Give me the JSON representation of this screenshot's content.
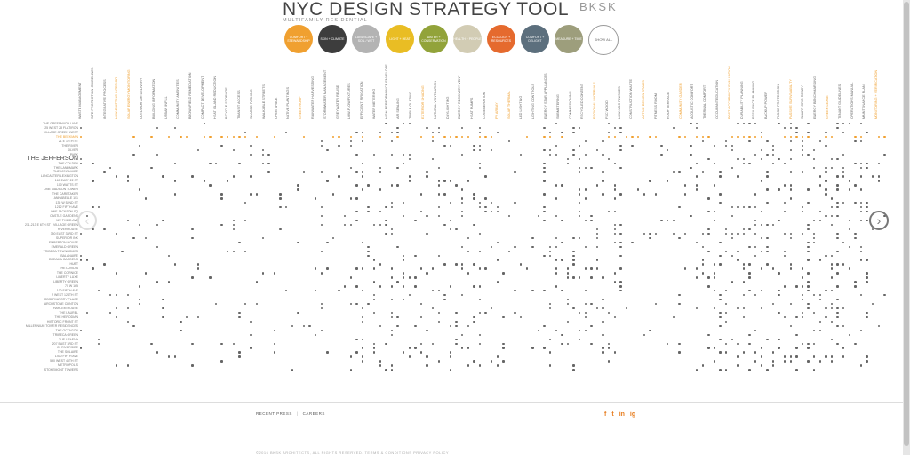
{
  "header": {
    "title": "NYC DESIGN STRATEGY TOOL",
    "subtitle": "MULTIFAMILY RESIDENTIAL",
    "logo": "BKSK"
  },
  "categories": [
    {
      "label": "COMFORT + STEWARDSHIP",
      "color": "#f0a030"
    },
    {
      "label": "SKIN + CLIMATE",
      "color": "#3d3d3d"
    },
    {
      "label": "LANDSCAPE + SOIL / WET",
      "color": "#b3b3b3"
    },
    {
      "label": "LIGHT + HEAT",
      "color": "#e9bd24"
    },
    {
      "label": "WATER + CONSERVATION",
      "color": "#92a33a"
    },
    {
      "label": "HEALTH + PEOPLE",
      "color": "#d2ccb4"
    },
    {
      "label": "ECOLOGY + RESOURCES",
      "color": "#e56a2e"
    },
    {
      "label": "COMFORT + DELIGHT",
      "color": "#5c6f7d"
    },
    {
      "label": "MEASURE + TIME",
      "color": "#9d9e7c"
    },
    {
      "label": "SHOW ALL",
      "color": "#ffffff"
    }
  ],
  "column_labels": [
    {
      "text": "WASTE MANAGEMENT",
      "hl": false
    },
    {
      "text": "SITE PROTECTION GUIDELINES",
      "hl": false
    },
    {
      "text": "INTEGRATIVE PROCESS",
      "hl": false
    },
    {
      "text": "LOW-EMITTING INTERIOR",
      "hl": true
    },
    {
      "text": "SOLAR ENERGY MONITORING",
      "hl": true
    },
    {
      "text": "OUTDOOR AIR DELIVERY",
      "hl": false
    },
    {
      "text": "BUILDING INFORMATION",
      "hl": false
    },
    {
      "text": "URBAN INFILL",
      "hl": false
    },
    {
      "text": "COMMUNITY AMENITIES",
      "hl": false
    },
    {
      "text": "BROWNFIELD REMEDIATION",
      "hl": false
    },
    {
      "text": "COMPACT DEVELOPMENT",
      "hl": false
    },
    {
      "text": "HEAT ISLAND REDUCTION",
      "hl": false
    },
    {
      "text": "BICYCLE STORAGE",
      "hl": false
    },
    {
      "text": "TRANSIT ACCESS",
      "hl": false
    },
    {
      "text": "SHARED PARKING",
      "hl": false
    },
    {
      "text": "WALKABLE STREETS",
      "hl": false
    },
    {
      "text": "OPEN SPACE",
      "hl": false
    },
    {
      "text": "NATIVE PLANTINGS",
      "hl": false
    },
    {
      "text": "GREEN ROOF",
      "hl": true
    },
    {
      "text": "RAINWATER HARVESTING",
      "hl": false
    },
    {
      "text": "STORMWATER MANAGEMENT",
      "hl": false
    },
    {
      "text": "GREYWATER REUSE",
      "hl": false
    },
    {
      "text": "LOW-FLOW FIXTURES",
      "hl": false
    },
    {
      "text": "EFFICIENT IRRIGATION",
      "hl": false
    },
    {
      "text": "WATER METERING",
      "hl": false
    },
    {
      "text": "HIGH-PERFORMANCE ENVELOPE",
      "hl": false
    },
    {
      "text": "AIR SEALING",
      "hl": false
    },
    {
      "text": "TRIPLE GLAZING",
      "hl": false
    },
    {
      "text": "EXTERIOR SHADING",
      "hl": true
    },
    {
      "text": "NATURAL VENTILATION",
      "hl": false
    },
    {
      "text": "DAYLIGHTING",
      "hl": false
    },
    {
      "text": "ENERGY RECOVERY VENT",
      "hl": false
    },
    {
      "text": "HEAT PUMPS",
      "hl": false
    },
    {
      "text": "COGENERATION",
      "hl": false
    },
    {
      "text": "PV ARRAY",
      "hl": true
    },
    {
      "text": "SOLAR THERMAL",
      "hl": true
    },
    {
      "text": "LED LIGHTING",
      "hl": false
    },
    {
      "text": "LIGHTING CONTROLS",
      "hl": false
    },
    {
      "text": "ENERGY STAR APPLIANCES",
      "hl": false
    },
    {
      "text": "SUBMETERING",
      "hl": false
    },
    {
      "text": "COMMISSIONING",
      "hl": false
    },
    {
      "text": "RECYCLED CONTENT",
      "hl": false
    },
    {
      "text": "REGIONAL MATERIALS",
      "hl": true
    },
    {
      "text": "FSC WOOD",
      "hl": false
    },
    {
      "text": "LOW-VOC FINISHES",
      "hl": false
    },
    {
      "text": "CONSTRUCTION WASTE",
      "hl": false
    },
    {
      "text": "ACTIVE DESIGN STAIRS",
      "hl": true
    },
    {
      "text": "FITNESS ROOM",
      "hl": false
    },
    {
      "text": "ROOF TERRACE",
      "hl": false
    },
    {
      "text": "COMMUNITY GARDEN",
      "hl": true
    },
    {
      "text": "ACOUSTIC COMFORT",
      "hl": false
    },
    {
      "text": "THERMAL COMFORT",
      "hl": false
    },
    {
      "text": "OCCUPANT EDUCATION",
      "hl": false
    },
    {
      "text": "POST-OCCUPANCY EVALUATION",
      "hl": true
    },
    {
      "text": "DURABILITY PLANNING",
      "hl": false
    },
    {
      "text": "RESILIENCE PLANNING",
      "hl": false
    },
    {
      "text": "BACKUP POWER",
      "hl": false
    },
    {
      "text": "FLOOD PROTECTION",
      "hl": false
    },
    {
      "text": "PASSIVE SURVIVABILITY",
      "hl": true
    },
    {
      "text": "SMART GRID READY",
      "hl": false
    },
    {
      "text": "ENERGY BENCHMARKING",
      "hl": false
    },
    {
      "text": "GREEN LEASE",
      "hl": true
    },
    {
      "text": "TENANT GUIDELINES",
      "hl": false
    },
    {
      "text": "OPERATIONS MANUAL",
      "hl": false
    },
    {
      "text": "MAINTENANCE PLAN",
      "hl": false
    },
    {
      "text": "MONITORING + VERIFICATION",
      "hl": true
    }
  ],
  "row_labels": [
    {
      "text": "THE GREENWICH LANE",
      "hl": false
    },
    {
      "text": "25 WEST 28 FLATIRON",
      "hl": false
    },
    {
      "text": "VILLAGE GREEN WEST",
      "hl": false
    },
    {
      "text": "THE BEEKMAN",
      "hl": true
    },
    {
      "text": "21 E 12TH ST",
      "hl": false
    },
    {
      "text": "THE RIVER",
      "hl": false
    },
    {
      "text": "SILVER",
      "hl": false
    },
    {
      "text": "PARK",
      "hl": false
    },
    {
      "text": "THE JEFFERSON",
      "hl": false,
      "big": true
    },
    {
      "text": "THE COLDEN",
      "hl": false
    },
    {
      "text": "THE LANDMARK",
      "hl": false
    },
    {
      "text": "THE VISIONAIRE",
      "hl": false
    },
    {
      "text": "LANCASTER LEXINGTON",
      "hl": false
    },
    {
      "text": "160 EAST 22 ST",
      "hl": false
    },
    {
      "text": "100 WATTS ST",
      "hl": false
    },
    {
      "text": "ONE MADISON TOWER",
      "hl": false
    },
    {
      "text": "THE CARETAKER",
      "hl": false
    },
    {
      "text": "ANNABELLE 101",
      "hl": false
    },
    {
      "text": "135 W 52ND ST",
      "hl": false
    },
    {
      "text": "1212 FIFTH AVE",
      "hl": false
    },
    {
      "text": "ONE JACKSON SQ",
      "hl": false
    },
    {
      "text": "CASTLE GARDENS",
      "hl": false
    },
    {
      "text": "122 THIRD AVE",
      "hl": false
    },
    {
      "text": "211-213 E 6TH ST - VILLAGE GREEN",
      "hl": false
    },
    {
      "text": "RIVERHOUSE",
      "hl": false
    },
    {
      "text": "350 EAST 33RD ST",
      "hl": false
    },
    {
      "text": "SUPERIOR INK",
      "hl": false
    },
    {
      "text": "EMBERTON HOUSE",
      "hl": false
    },
    {
      "text": "EMERALD GREEN",
      "hl": false
    },
    {
      "text": "TRIBECA TOWNHOMES",
      "hl": false
    },
    {
      "text": "BALANAIRE",
      "hl": false
    },
    {
      "text": "DREAMA GARDENS",
      "hl": false
    },
    {
      "text": "HUBT",
      "hl": false
    },
    {
      "text": "THE LUVIDIA",
      "hl": false
    },
    {
      "text": "THE CORNICE",
      "hl": false
    },
    {
      "text": "LIBERTY LUXE",
      "hl": false
    },
    {
      "text": "LIBERTY GREEN",
      "hl": false
    },
    {
      "text": "70 W 165",
      "hl": false
    },
    {
      "text": "100 FIFTH AVE",
      "hl": false
    },
    {
      "text": "2 WEST 124TH ST",
      "hl": false
    },
    {
      "text": "OBSERVATORY PLACE",
      "hl": false
    },
    {
      "text": "ARCHSTONE CLINTON",
      "hl": false
    },
    {
      "text": "HARLEM HOUSE",
      "hl": false
    },
    {
      "text": "THE LAUREL",
      "hl": false
    },
    {
      "text": "THE HERODIAN",
      "hl": false
    },
    {
      "text": "HISTORIC FRONT ST",
      "hl": false
    },
    {
      "text": "MILLENNIUM TOWER RESIDENCES",
      "hl": false
    },
    {
      "text": "THE OCTAGON",
      "hl": false
    },
    {
      "text": "TRIBECA GREEN",
      "hl": false
    },
    {
      "text": "THE HELENA",
      "hl": false
    },
    {
      "text": "207 EAST 3RD ST",
      "hl": false
    },
    {
      "text": "20 RIVERSIDE",
      "hl": false
    },
    {
      "text": "THE SOLAIRE",
      "hl": false
    },
    {
      "text": "1400 FIFTH AVE",
      "hl": false
    },
    {
      "text": "590 WEST 45TH ST",
      "hl": false
    },
    {
      "text": "METROPOLIS",
      "hl": false
    },
    {
      "text": "STOKEMONT TOWERS",
      "hl": false
    }
  ],
  "footer": {
    "links": [
      "RECENT PRESS",
      "CAREERS"
    ],
    "social": [
      "f",
      "t",
      "in",
      "ig"
    ],
    "copyright": "©2016 BKSK ARCHITECTS, ALL RIGHTS RESERVED.  TERMS & CONDITIONS  PRIVACY POLICY"
  }
}
